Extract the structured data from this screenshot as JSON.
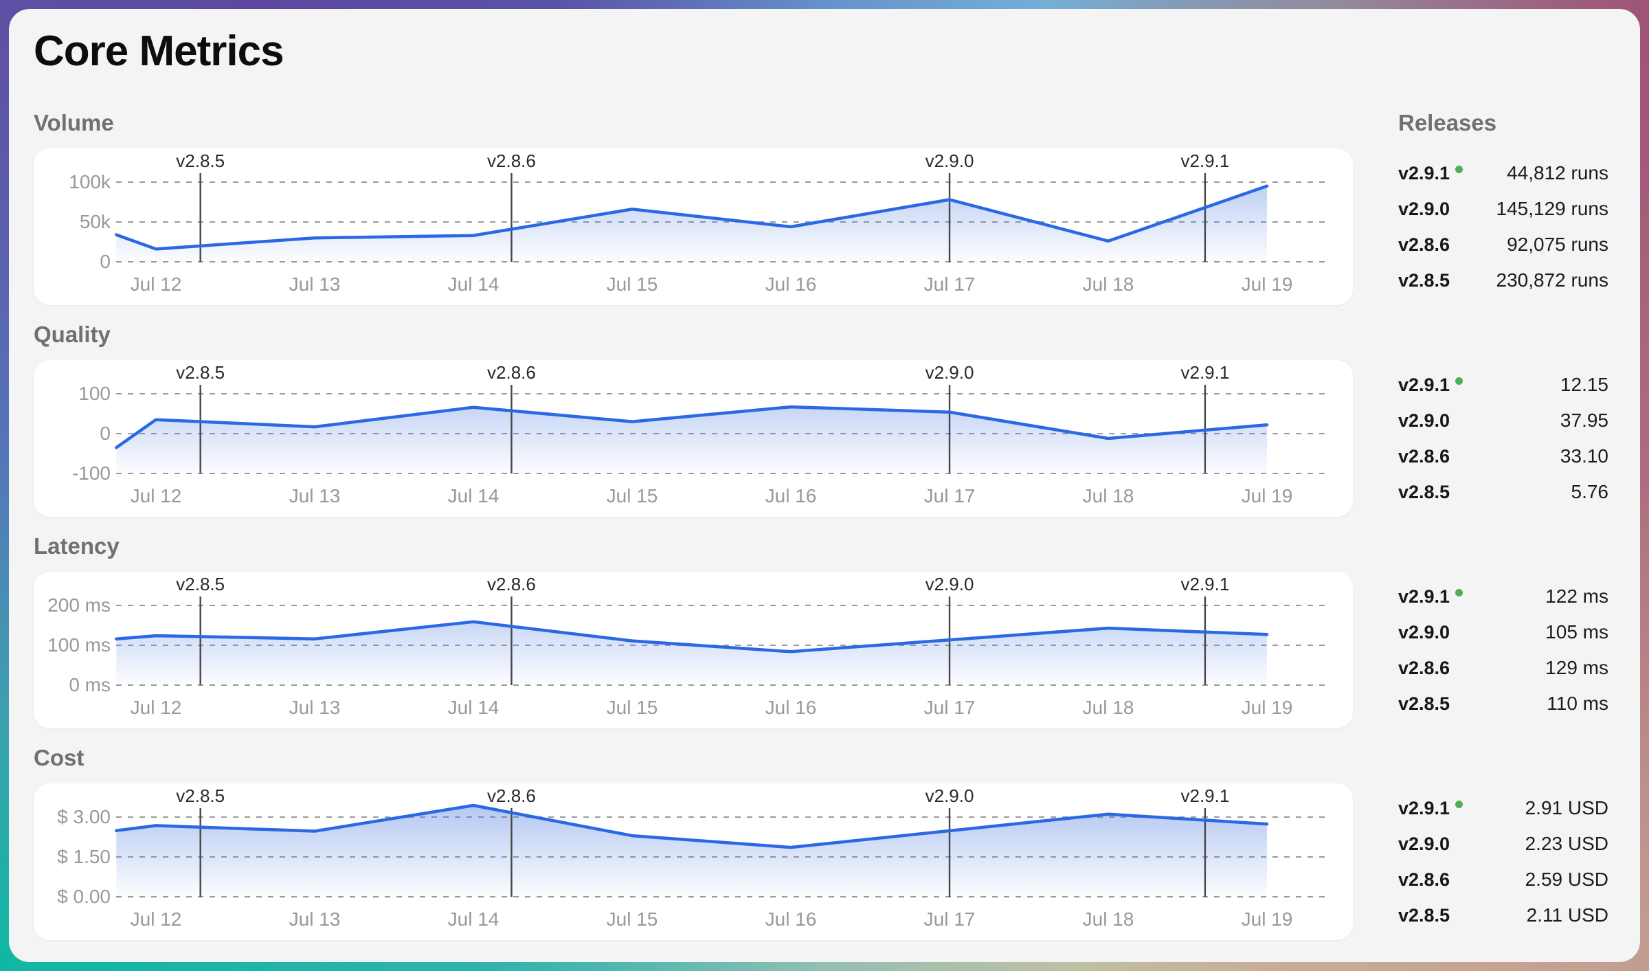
{
  "window": {
    "title": "Core Metrics"
  },
  "releases_panel": {
    "title": "Releases"
  },
  "release_markers": [
    {
      "label": "v2.8.5",
      "x_day": 0.28
    },
    {
      "label": "v2.8.6",
      "x_day": 2.24
    },
    {
      "label": "v2.9.0",
      "x_day": 5.0
    },
    {
      "label": "v2.9.1",
      "x_day": 6.61
    }
  ],
  "sections": [
    {
      "label": "Volume",
      "releases": [
        {
          "version": "v2.9.1",
          "current": true,
          "value": "44,812 runs"
        },
        {
          "version": "v2.9.0",
          "current": false,
          "value": "145,129 runs"
        },
        {
          "version": "v2.8.6",
          "current": false,
          "value": "92,075 runs"
        },
        {
          "version": "v2.8.5",
          "current": false,
          "value": "230,872 runs"
        }
      ]
    },
    {
      "label": "Quality",
      "releases": [
        {
          "version": "v2.9.1",
          "current": true,
          "value": "12.15"
        },
        {
          "version": "v2.9.0",
          "current": false,
          "value": "37.95"
        },
        {
          "version": "v2.8.6",
          "current": false,
          "value": "33.10"
        },
        {
          "version": "v2.8.5",
          "current": false,
          "value": "5.76"
        }
      ]
    },
    {
      "label": "Latency",
      "releases": [
        {
          "version": "v2.9.1",
          "current": true,
          "value": "122 ms"
        },
        {
          "version": "v2.9.0",
          "current": false,
          "value": "105 ms"
        },
        {
          "version": "v2.8.6",
          "current": false,
          "value": "129 ms"
        },
        {
          "version": "v2.8.5",
          "current": false,
          "value": "110 ms"
        }
      ]
    },
    {
      "label": "Cost",
      "releases": [
        {
          "version": "v2.9.1",
          "current": true,
          "value": "2.91 USD"
        },
        {
          "version": "v2.9.0",
          "current": false,
          "value": "2.23 USD"
        },
        {
          "version": "v2.8.6",
          "current": false,
          "value": "2.59 USD"
        },
        {
          "version": "v2.8.5",
          "current": false,
          "value": "2.11 USD"
        }
      ]
    }
  ],
  "chart_data": [
    {
      "id": "volume",
      "type": "area",
      "title": "Volume",
      "x_labels": [
        "Jul 12",
        "Jul 13",
        "Jul 14",
        "Jul 15",
        "Jul 16",
        "Jul 17",
        "Jul 18",
        "Jul 19"
      ],
      "x_domain_days": [
        -0.25,
        7
      ],
      "y_unit": "k runs",
      "y_grid": [
        {
          "label": "100k",
          "value": 100
        },
        {
          "label": "50k",
          "value": 50
        },
        {
          "label": "0",
          "value": 0
        }
      ],
      "series": [
        {
          "x": -0.25,
          "y": 34
        },
        {
          "x": 0,
          "y": 16
        },
        {
          "x": 1,
          "y": 30
        },
        {
          "x": 2,
          "y": 33
        },
        {
          "x": 3,
          "y": 66
        },
        {
          "x": 4,
          "y": 44
        },
        {
          "x": 5,
          "y": 78
        },
        {
          "x": 6,
          "y": 26
        },
        {
          "x": 7,
          "y": 95
        }
      ]
    },
    {
      "id": "quality",
      "type": "area",
      "title": "Quality",
      "x_labels": [
        "Jul 12",
        "Jul 13",
        "Jul 14",
        "Jul 15",
        "Jul 16",
        "Jul 17",
        "Jul 18",
        "Jul 19"
      ],
      "x_domain_days": [
        -0.25,
        7
      ],
      "y_unit": "score",
      "y_grid": [
        {
          "label": "100",
          "value": 100
        },
        {
          "label": "0",
          "value": 0
        },
        {
          "label": "-100",
          "value": -100
        }
      ],
      "series": [
        {
          "x": -0.25,
          "y": -35
        },
        {
          "x": 0,
          "y": 35
        },
        {
          "x": 1,
          "y": 17
        },
        {
          "x": 2,
          "y": 66
        },
        {
          "x": 3,
          "y": 30
        },
        {
          "x": 4,
          "y": 67
        },
        {
          "x": 5,
          "y": 54
        },
        {
          "x": 6,
          "y": -12
        },
        {
          "x": 7,
          "y": 22
        }
      ]
    },
    {
      "id": "latency",
      "type": "area",
      "title": "Latency",
      "x_labels": [
        "Jul 12",
        "Jul 13",
        "Jul 14",
        "Jul 15",
        "Jul 16",
        "Jul 17",
        "Jul 18",
        "Jul 19"
      ],
      "x_domain_days": [
        -0.25,
        7
      ],
      "y_unit": "ms",
      "y_grid": [
        {
          "label": "200 ms",
          "value": 200
        },
        {
          "label": "100 ms",
          "value": 100
        },
        {
          "label": "0 ms",
          "value": 0
        }
      ],
      "series": [
        {
          "x": -0.25,
          "y": 116
        },
        {
          "x": 0,
          "y": 124
        },
        {
          "x": 1,
          "y": 116
        },
        {
          "x": 2,
          "y": 159
        },
        {
          "x": 3,
          "y": 111
        },
        {
          "x": 4,
          "y": 84
        },
        {
          "x": 6,
          "y": 143
        },
        {
          "x": 7,
          "y": 127
        }
      ]
    },
    {
      "id": "cost",
      "type": "area",
      "title": "Cost",
      "x_labels": [
        "Jul 12",
        "Jul 13",
        "Jul 14",
        "Jul 15",
        "Jul 16",
        "Jul 17",
        "Jul 18",
        "Jul 19"
      ],
      "x_domain_days": [
        -0.25,
        7
      ],
      "y_unit": "USD",
      "y_grid": [
        {
          "label": "$ 3.00",
          "value": 3.0
        },
        {
          "label": "$ 1.50",
          "value": 1.5
        },
        {
          "label": "$ 0.00",
          "value": 0.0
        }
      ],
      "series": [
        {
          "x": -0.25,
          "y": 2.49
        },
        {
          "x": 0,
          "y": 2.68
        },
        {
          "x": 1,
          "y": 2.47
        },
        {
          "x": 2,
          "y": 3.44
        },
        {
          "x": 3,
          "y": 2.3
        },
        {
          "x": 4,
          "y": 1.86
        },
        {
          "x": 6,
          "y": 3.11
        },
        {
          "x": 7,
          "y": 2.74
        }
      ]
    }
  ],
  "colors": {
    "line": "#2a68e4",
    "fill_top": "rgba(73,121,224,0.42)",
    "fill_bottom": "rgba(73,121,224,0.02)",
    "grid": "#9a9a9e",
    "tick_text": "#98989d",
    "marker_line": "#47474a",
    "marker_text": "#29292b",
    "current_dot": "#4fae54"
  }
}
